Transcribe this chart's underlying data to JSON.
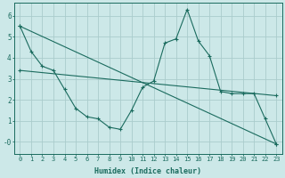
{
  "xlabel": "Humidex (Indice chaleur)",
  "bg_color": "#cce8e8",
  "grid_color": "#aacccc",
  "line_color": "#1a6b5e",
  "xlim": [
    -0.5,
    23.5
  ],
  "ylim": [
    -0.55,
    6.6
  ],
  "xticks": [
    0,
    1,
    2,
    3,
    4,
    5,
    6,
    7,
    8,
    9,
    10,
    11,
    12,
    13,
    14,
    15,
    16,
    17,
    18,
    19,
    20,
    21,
    22,
    23
  ],
  "yticks": [
    0,
    1,
    2,
    3,
    4,
    5,
    6
  ],
  "ytick_labels": [
    "-0",
    "1",
    "2",
    "3",
    "4",
    "5",
    "6"
  ],
  "line1_x": [
    0,
    1,
    2,
    3,
    4,
    5,
    6,
    7,
    8,
    9,
    10,
    11,
    12,
    13,
    14,
    15,
    16,
    17,
    18,
    19,
    20,
    21,
    22,
    23
  ],
  "line1_y": [
    5.5,
    4.3,
    3.6,
    3.4,
    2.5,
    1.6,
    1.2,
    1.1,
    0.7,
    0.6,
    1.5,
    2.6,
    2.9,
    4.7,
    4.9,
    6.3,
    4.8,
    4.1,
    2.4,
    2.3,
    2.3,
    2.3,
    1.1,
    -0.1
  ],
  "line2_x": [
    0,
    23
  ],
  "line2_y": [
    5.5,
    -0.1
  ],
  "line3_x": [
    0,
    23
  ],
  "line3_y": [
    3.4,
    2.2
  ],
  "figsize": [
    3.2,
    2.0
  ],
  "dpi": 100,
  "tick_fontsize": 5.0,
  "xlabel_fontsize": 6.0
}
